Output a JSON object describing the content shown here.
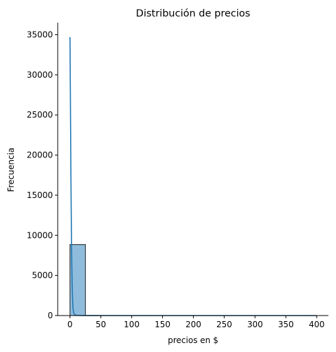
{
  "chart_data": {
    "type": "bar",
    "title": "Distribución de precios",
    "xlabel": "precios en $",
    "ylabel": "Frecuencia",
    "xlim": [
      -19.9,
      419.0
    ],
    "ylim": [
      0,
      36500
    ],
    "x_ticks": [
      0,
      50,
      100,
      150,
      200,
      250,
      300,
      350,
      400
    ],
    "y_ticks": [
      0,
      5000,
      10000,
      15000,
      20000,
      25000,
      30000,
      35000
    ],
    "bar_color": "#8fbcdc",
    "bar_edge_color": "#1a1a1a",
    "line_color": "#1f77b4",
    "bins": [
      {
        "x0": 0,
        "x1": 25,
        "value": 8850
      },
      {
        "x0": 25,
        "x1": 50,
        "value": 15
      },
      {
        "x0": 50,
        "x1": 75,
        "value": 5
      },
      {
        "x0": 75,
        "x1": 100,
        "value": 3
      },
      {
        "x0": 100,
        "x1": 125,
        "value": 2
      },
      {
        "x0": 125,
        "x1": 150,
        "value": 1
      },
      {
        "x0": 150,
        "x1": 175,
        "value": 1
      },
      {
        "x0": 175,
        "x1": 200,
        "value": 1
      },
      {
        "x0": 200,
        "x1": 225,
        "value": 0
      },
      {
        "x0": 225,
        "x1": 250,
        "value": 0
      },
      {
        "x0": 250,
        "x1": 275,
        "value": 0
      },
      {
        "x0": 275,
        "x1": 300,
        "value": 0
      },
      {
        "x0": 300,
        "x1": 325,
        "value": 0
      },
      {
        "x0": 325,
        "x1": 350,
        "value": 0
      },
      {
        "x0": 350,
        "x1": 375,
        "value": 0
      },
      {
        "x0": 375,
        "x1": 400,
        "value": 1
      }
    ],
    "kde": {
      "x": [
        0,
        0.5,
        1,
        1.5,
        2,
        2.5,
        3,
        3.5,
        4,
        4.5,
        5,
        6,
        7,
        8,
        10,
        15,
        20,
        30,
        50,
        100,
        200,
        300,
        400
      ],
      "y": [
        34700,
        29000,
        23000,
        17500,
        12800,
        9000,
        6000,
        3900,
        2400,
        1400,
        800,
        350,
        180,
        100,
        40,
        15,
        8,
        3,
        1,
        0,
        0,
        0,
        0
      ]
    }
  }
}
